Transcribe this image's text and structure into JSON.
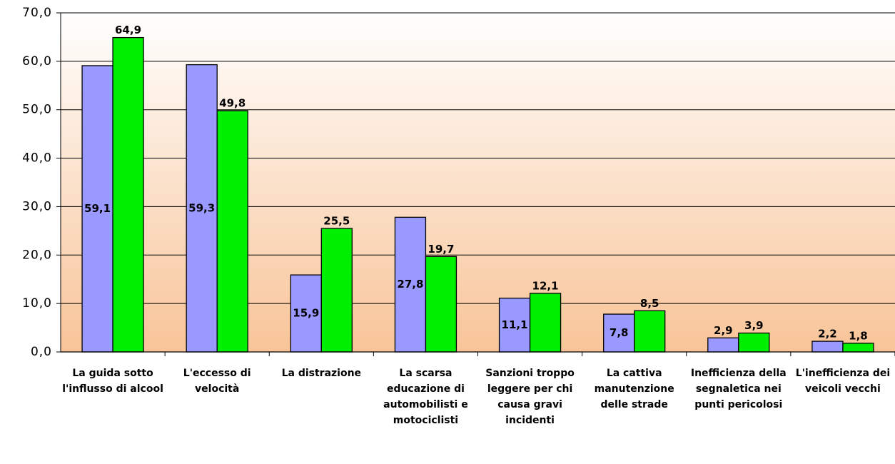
{
  "chart_data": {
    "type": "bar",
    "categories": [
      "La guida sotto l'influsso di alcool",
      "L'eccesso di velocità",
      "La distrazione",
      "La scarsa educazione di automobilisti e motociclisti",
      "Sanzioni troppo leggere per chi causa gravi incidenti",
      "La cattiva manutenzione delle strade",
      "Inefficienza della segnaletica nei punti pericolosi",
      "L'inefficienza dei veicoli vecchi"
    ],
    "series": [
      {
        "color": "#9999ff",
        "values": [
          59.1,
          59.3,
          15.9,
          27.8,
          11.1,
          7.8,
          2.9,
          2.2
        ],
        "value_labels": [
          "59,1",
          "59,3",
          "15,9",
          "27,8",
          "11,1",
          "7,8",
          "2,9",
          "2,2"
        ]
      },
      {
        "color": "#00ee00",
        "values": [
          64.9,
          49.8,
          25.5,
          19.7,
          12.1,
          8.5,
          3.9,
          1.8
        ],
        "value_labels": [
          "64,9",
          "49,8",
          "25,5",
          "19,7",
          "12,1",
          "8,5",
          "3,9",
          "1,8"
        ]
      }
    ],
    "ylim": [
      0,
      70
    ],
    "yticks": [
      {
        "value": 0,
        "label": "0,0"
      },
      {
        "value": 10,
        "label": "10,0"
      },
      {
        "value": 20,
        "label": "20,0"
      },
      {
        "value": 30,
        "label": "30,0"
      },
      {
        "value": 40,
        "label": "40,0"
      },
      {
        "value": 50,
        "label": "50,0"
      },
      {
        "value": 60,
        "label": "60,0"
      },
      {
        "value": 70,
        "label": "70,0"
      }
    ],
    "grid": true
  }
}
